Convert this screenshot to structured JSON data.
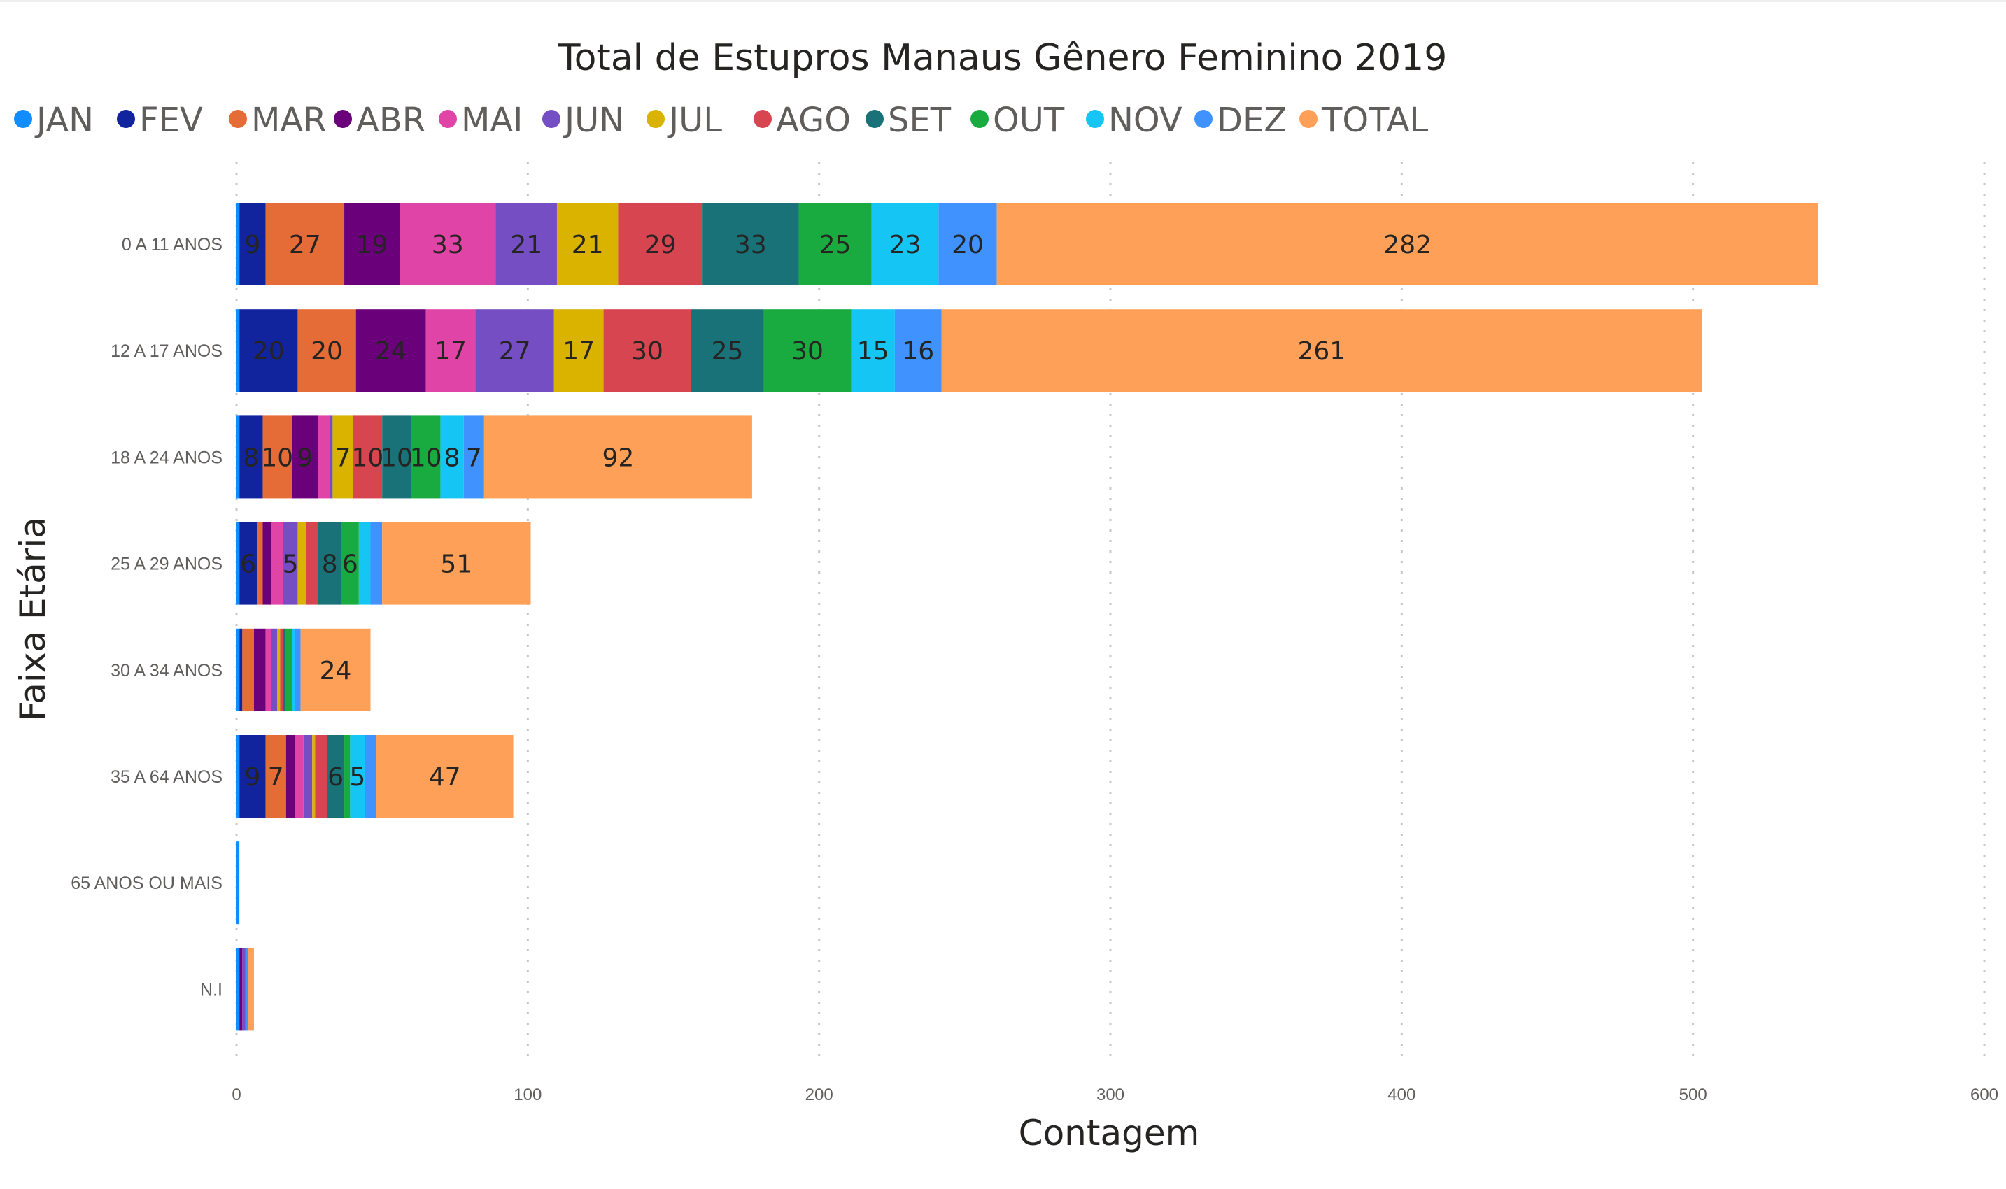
{
  "chart_data": {
    "type": "bar",
    "orientation": "horizontal",
    "stacked": true,
    "title": "Total de Estupros Manaus Gênero Feminino 2019",
    "xlabel": "Contagem",
    "ylabel": "Faixa Etária",
    "xlim": [
      0,
      600
    ],
    "xticks": [
      "0",
      "100",
      "200",
      "300",
      "400",
      "500",
      "600"
    ],
    "grid": "vertical dotted",
    "legend_position": "top-left",
    "categories": [
      "0 A 11 ANOS",
      "12 A 17 ANOS",
      "18 A 24 ANOS",
      "25 A 29 ANOS",
      "30 A 34 ANOS",
      "35 A 64 ANOS",
      "65 ANOS OU MAIS",
      "N.I"
    ],
    "series": [
      {
        "name": "JAN",
        "color": "#118DFF",
        "values": [
          1,
          1,
          1,
          1,
          1,
          1,
          1,
          1
        ]
      },
      {
        "name": "FEV",
        "color": "#12239E",
        "values": [
          9,
          20,
          8,
          6,
          1,
          9,
          0,
          0
        ]
      },
      {
        "name": "MAR",
        "color": "#E66C37",
        "values": [
          27,
          20,
          10,
          2,
          4,
          7,
          0,
          0
        ]
      },
      {
        "name": "ABR",
        "color": "#6B007B",
        "values": [
          19,
          24,
          9,
          3,
          4,
          3,
          0,
          1
        ]
      },
      {
        "name": "MAI",
        "color": "#E044A7",
        "values": [
          33,
          17,
          4,
          4,
          2,
          3,
          0,
          0
        ]
      },
      {
        "name": "JUN",
        "color": "#744EC2",
        "values": [
          21,
          27,
          1,
          5,
          2,
          3,
          0,
          1
        ]
      },
      {
        "name": "JUL",
        "color": "#D9B300",
        "values": [
          21,
          17,
          7,
          3,
          1,
          1,
          0,
          0
        ]
      },
      {
        "name": "AGO",
        "color": "#D64550",
        "values": [
          29,
          30,
          10,
          4,
          1,
          4,
          0,
          0
        ]
      },
      {
        "name": "SET",
        "color": "#197278",
        "values": [
          33,
          25,
          10,
          8,
          1,
          6,
          0,
          0
        ]
      },
      {
        "name": "OUT",
        "color": "#1AAB40",
        "values": [
          25,
          30,
          10,
          6,
          2,
          2,
          0,
          0
        ]
      },
      {
        "name": "NOV",
        "color": "#15C6F4",
        "values": [
          23,
          15,
          8,
          4,
          1,
          5,
          0,
          0
        ]
      },
      {
        "name": "DEZ",
        "color": "#4092FF",
        "values": [
          20,
          16,
          7,
          4,
          2,
          4,
          0,
          1
        ]
      },
      {
        "name": "TOTAL",
        "color": "#FFA058",
        "values": [
          282,
          261,
          92,
          51,
          24,
          47,
          0,
          2
        ]
      }
    ],
    "visible_data_labels": [
      [
        null,
        "9",
        "27",
        "19",
        "33",
        "21",
        "21",
        "29",
        "33",
        "25",
        "23",
        "20",
        "282"
      ],
      [
        null,
        "20",
        "20",
        "24",
        "17",
        "27",
        "17",
        "30",
        "25",
        "30",
        "15",
        "16",
        "261"
      ],
      [
        null,
        "8",
        "10",
        "9",
        null,
        null,
        "7",
        "10",
        "10",
        "10",
        "8",
        "7",
        "92"
      ],
      [
        null,
        "6",
        null,
        null,
        null,
        "5",
        null,
        null,
        "8",
        "6",
        null,
        null,
        "51"
      ],
      [
        null,
        null,
        null,
        null,
        null,
        null,
        null,
        null,
        null,
        null,
        null,
        null,
        "24"
      ],
      [
        null,
        "9",
        "7",
        null,
        null,
        null,
        null,
        null,
        "6",
        null,
        "5",
        null,
        "47"
      ],
      [
        null,
        null,
        null,
        null,
        null,
        null,
        null,
        null,
        null,
        null,
        null,
        null,
        null
      ],
      [
        null,
        null,
        null,
        null,
        null,
        null,
        null,
        null,
        null,
        null,
        null,
        null,
        null
      ]
    ]
  }
}
